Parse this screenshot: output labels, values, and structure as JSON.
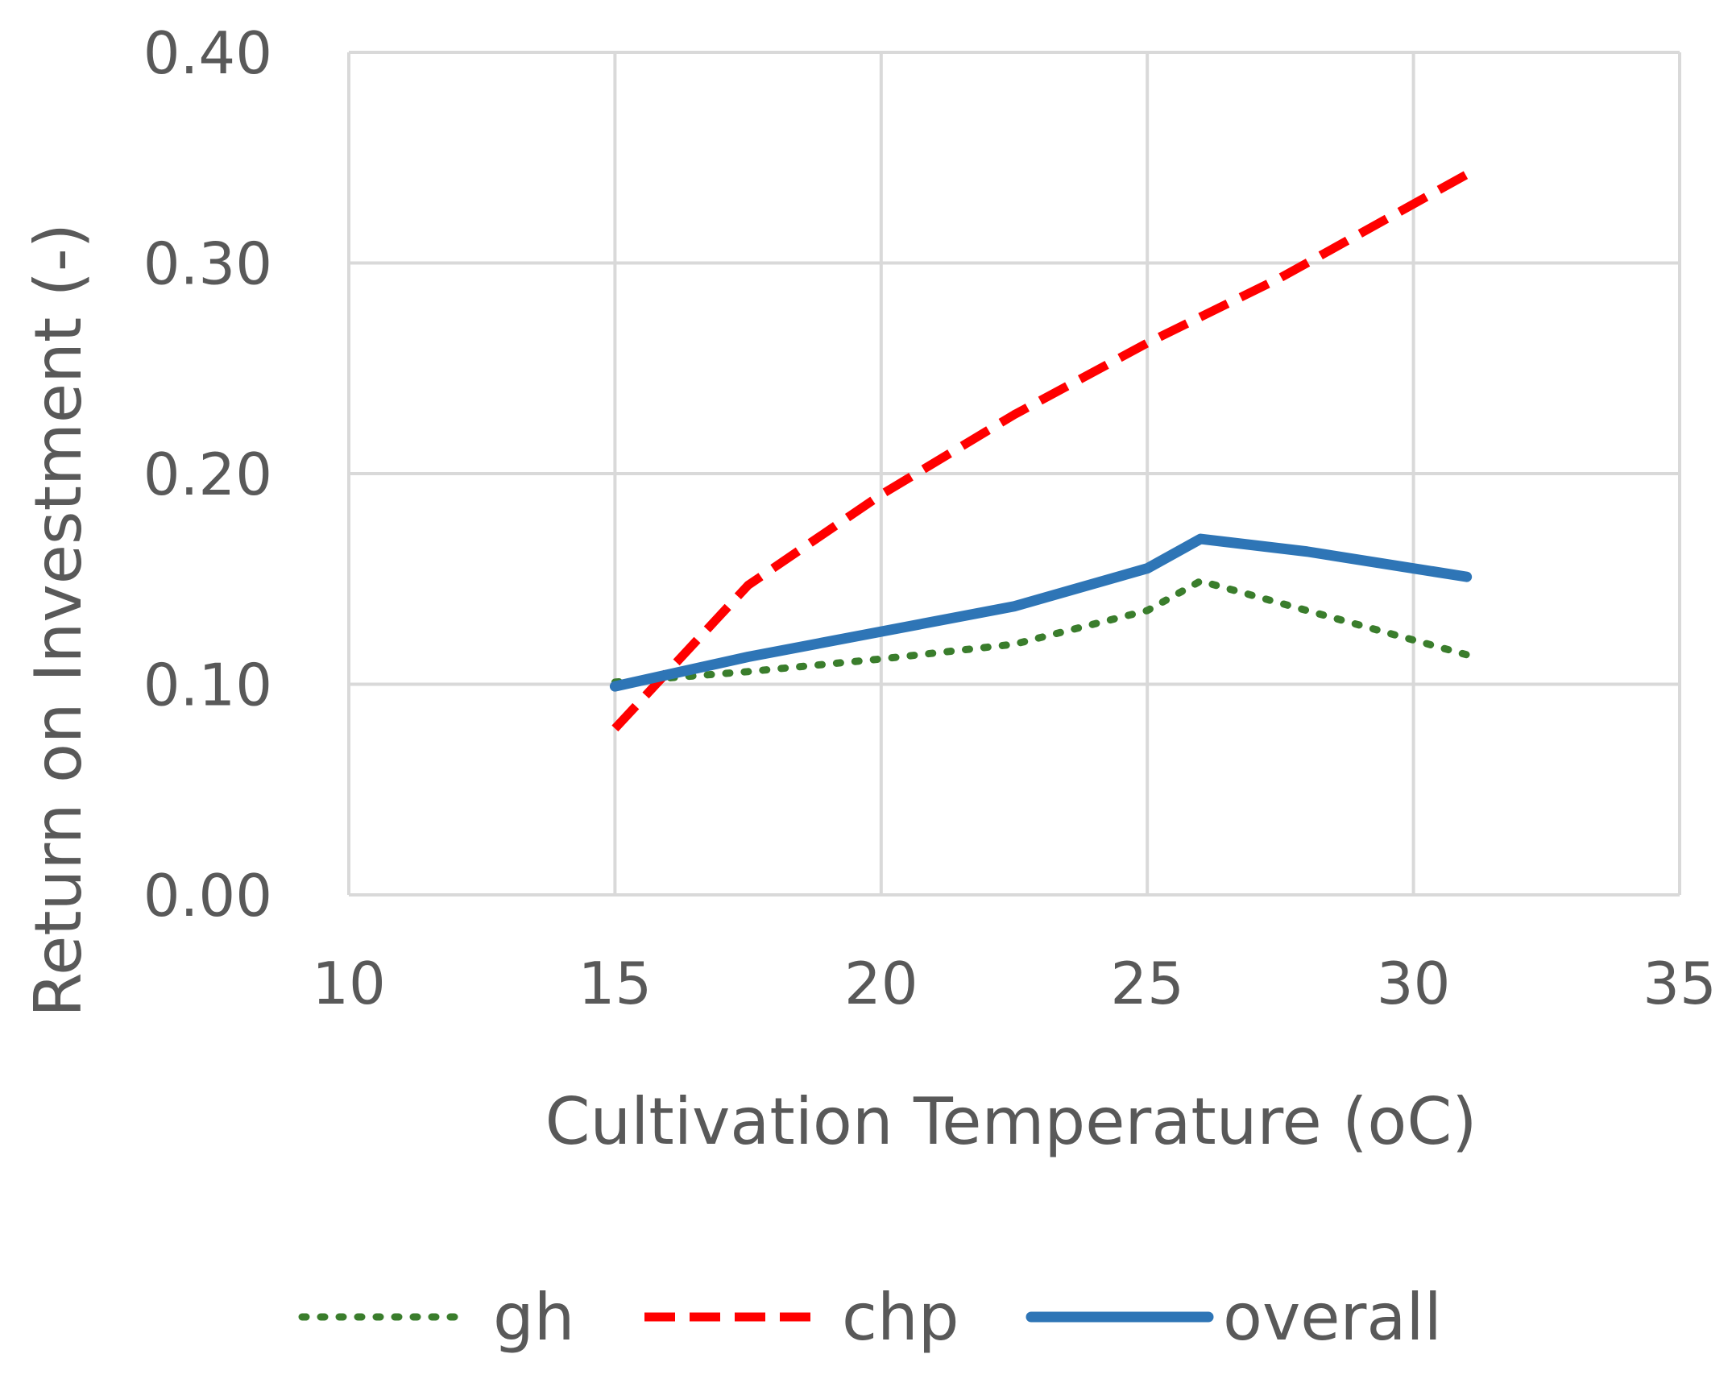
{
  "chart_data": {
    "type": "line",
    "title": "",
    "xlabel": "Cultivation Temperature (oC)",
    "ylabel": "Return on Investment (-)",
    "xlim": [
      10,
      35
    ],
    "ylim": [
      0,
      0.4
    ],
    "xticks": [
      10,
      15,
      20,
      25,
      30,
      35
    ],
    "yticks": [
      0,
      0.1,
      0.2,
      0.3,
      0.4
    ],
    "xtick_labels": [
      "10",
      "15",
      "20",
      "25",
      "30",
      "35"
    ],
    "ytick_labels": [
      "0.00",
      "0.10",
      "0.20",
      "0.30",
      "0.40"
    ],
    "grid": true,
    "legend_position": "bottom",
    "series": [
      {
        "name": "gh",
        "color": "#3a7d2c",
        "style": "dotted",
        "x": [
          15,
          17.5,
          20,
          22.5,
          25,
          26,
          28,
          31
        ],
        "y": [
          0.101,
          0.106,
          0.112,
          0.119,
          0.135,
          0.149,
          0.135,
          0.114
        ]
      },
      {
        "name": "chp",
        "color": "#ff0000",
        "style": "dashed",
        "x": [
          15,
          17.5,
          20,
          22.5,
          25,
          27.5,
          31
        ],
        "y": [
          0.079,
          0.147,
          0.19,
          0.228,
          0.262,
          0.293,
          0.342
        ]
      },
      {
        "name": "overall",
        "color": "#2e75b6",
        "style": "solid",
        "x": [
          15,
          17.5,
          20,
          22.5,
          25,
          26,
          28,
          31
        ],
        "y": [
          0.099,
          0.113,
          0.125,
          0.137,
          0.155,
          0.169,
          0.163,
          0.151
        ]
      }
    ]
  }
}
